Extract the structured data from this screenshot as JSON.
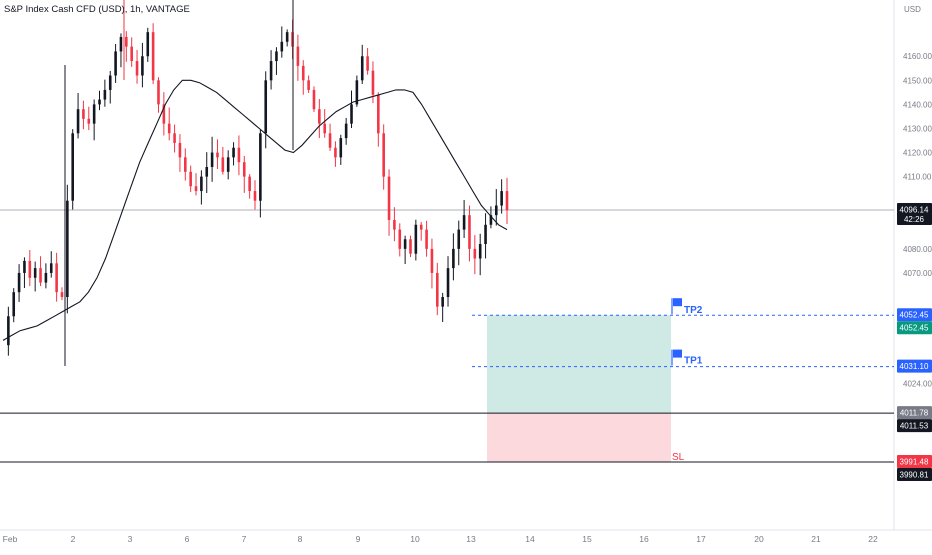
{
  "header": {
    "symbol": "S&P Index Cash CFD (USD)",
    "separator1": ", ",
    "interval": "1h",
    "separator2": ", ",
    "exchange": "VANTAGE"
  },
  "currency": "USD",
  "axis": {
    "price_ticks": [
      {
        "value": 4160,
        "label": "4160.00"
      },
      {
        "value": 4150,
        "label": "4150.00"
      },
      {
        "value": 4140,
        "label": "4140.00"
      },
      {
        "value": 4130,
        "label": "4130.00"
      },
      {
        "value": 4120,
        "label": "4120.00"
      },
      {
        "value": 4110,
        "label": "4110.00"
      },
      {
        "value": 4080,
        "label": "4080.00"
      },
      {
        "value": 4070,
        "label": "4070.00"
      },
      {
        "value": 4024,
        "label": "4024.00"
      }
    ],
    "time_ticks": [
      {
        "label": "Feb",
        "x": 0
      },
      {
        "label": "2",
        "x": 1
      },
      {
        "label": "3",
        "x": 2
      },
      {
        "label": "6",
        "x": 3
      },
      {
        "label": "7",
        "x": 4
      },
      {
        "label": "8",
        "x": 5
      },
      {
        "label": "9",
        "x": 6
      },
      {
        "label": "10",
        "x": 7
      },
      {
        "label": "13",
        "x": 8
      },
      {
        "label": "14",
        "x": 9
      },
      {
        "label": "15",
        "x": 10
      },
      {
        "label": "16",
        "x": 11
      },
      {
        "label": "17",
        "x": 12
      },
      {
        "label": "20",
        "x": 13
      },
      {
        "label": "21",
        "x": 14
      },
      {
        "label": "22",
        "x": 15
      }
    ]
  },
  "price_labels": [
    {
      "value": 4096.14,
      "text": "4096.14",
      "sub": "42:26",
      "bg": "#131722",
      "fg": "#ffffff"
    },
    {
      "value": 4052.45,
      "text": "4052.45",
      "bg": "#2962ff",
      "fg": "#ffffff"
    },
    {
      "value": 4052.45,
      "text": "4052.45",
      "bg": "#089981",
      "fg": "#ffffff",
      "offset": 1
    },
    {
      "value": 4031.1,
      "text": "4031.10",
      "bg": "#2962ff",
      "fg": "#ffffff"
    },
    {
      "value": 4011.78,
      "text": "4011.78",
      "bg": "#787b86",
      "fg": "#ffffff"
    },
    {
      "value": 4011.53,
      "text": "4011.53",
      "bg": "#131722",
      "fg": "#ffffff",
      "offset": 1
    },
    {
      "value": 3991.48,
      "text": "3991.48",
      "bg": "#f23645",
      "fg": "#ffffff"
    },
    {
      "value": 3990.81,
      "text": "3990.81",
      "bg": "#131722",
      "fg": "#ffffff",
      "offset": 1
    }
  ],
  "annotations": {
    "tp2": "TP2",
    "tp1": "TP1",
    "sl": "SL"
  },
  "levels": {
    "current": 4096.14,
    "tp2": 4052.45,
    "tp1": 4031.1,
    "entry": 4011.78,
    "sl": 3991.48
  },
  "colors": {
    "up": "#089981",
    "down": "#f23645",
    "candle_up": "#131722",
    "candle_down": "#f23645",
    "profit_zone": "#cfeae4",
    "loss_zone": "#fbd9dc",
    "tp_line": "#2962ff",
    "ma_line": "#131722"
  },
  "chart_data": {
    "type": "candlestick",
    "ylim": [
      3985,
      4176
    ],
    "close_path": [
      4040,
      4052,
      4062,
      4070,
      4075,
      4068,
      4072,
      4066,
      4070,
      4074,
      4062,
      4060,
      4100,
      4128,
      4138,
      4134,
      4132,
      4140,
      4142,
      4146,
      4152,
      4162,
      4168,
      4164,
      4158,
      4152,
      4160,
      4170,
      4150,
      4140,
      4132,
      4128,
      4124,
      4118,
      4112,
      4106,
      4104,
      4110,
      4114,
      4120,
      4118,
      4112,
      4118,
      4122,
      4116,
      4110,
      4104,
      4100,
      4128,
      4150,
      4158,
      4162,
      4166,
      4170,
      4164,
      4156,
      4150,
      4146,
      4138,
      4132,
      4128,
      4122,
      4118,
      4126,
      4132,
      4140,
      4150,
      4160,
      4154,
      4144,
      4128,
      4110,
      4092,
      4088,
      4080,
      4084,
      4078,
      4090,
      4088,
      4080,
      4070,
      4056,
      4060,
      4072,
      4080,
      4088,
      4094,
      4080,
      4076,
      4082,
      4090,
      4094,
      4098,
      4104,
      4096
    ],
    "ma_path": [
      4042,
      4044,
      4046,
      4047,
      4048,
      4050,
      4052,
      4054,
      4056,
      4058,
      4062,
      4068,
      4076,
      4086,
      4096,
      4106,
      4116,
      4124,
      4132,
      4140,
      4146,
      4150,
      4150,
      4149,
      4147,
      4145,
      4142,
      4139,
      4136,
      4133,
      4130,
      4127,
      4124,
      4121,
      4120,
      4123,
      4127,
      4131,
      4134,
      4137,
      4139,
      4141,
      4142,
      4143,
      4144,
      4145,
      4146,
      4146,
      4145,
      4140,
      4134,
      4128,
      4122,
      4116,
      4110,
      4104,
      4098,
      4094,
      4090,
      4088
    ]
  }
}
